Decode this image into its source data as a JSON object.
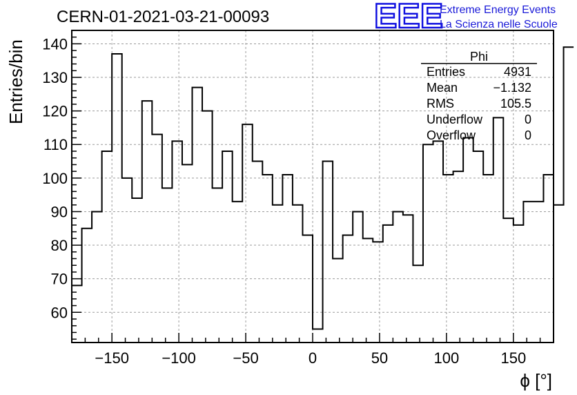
{
  "run_title": "CERN-01-2021-03-21-00093",
  "logo": {
    "mark": "EEE",
    "line1": "Extreme Energy Events",
    "line2": "La Scienza nelle Scuole",
    "color": "#1a1ad8"
  },
  "stats_box": {
    "title": "Phi",
    "rows": [
      {
        "label": "Entries",
        "value": "4931"
      },
      {
        "label": "Mean",
        "value": "−1.132"
      },
      {
        "label": "RMS",
        "value": "105.5"
      },
      {
        "label": "Underflow",
        "value": "0"
      },
      {
        "label": "Overflow",
        "value": "0"
      }
    ]
  },
  "chart_data": {
    "type": "histogram",
    "xlabel": "ϕ [°]",
    "ylabel": "Entries/bin",
    "xlim": [
      -180,
      180
    ],
    "ylim": [
      51,
      144
    ],
    "xticks": [
      -150,
      -100,
      -50,
      0,
      50,
      100,
      150
    ],
    "xtick_labels": [
      "−150",
      "−100",
      "−50",
      "0",
      "50",
      "100",
      "150"
    ],
    "yticks": [
      60,
      70,
      80,
      90,
      100,
      110,
      120,
      130,
      140
    ],
    "ytick_labels": [
      "60",
      "70",
      "80",
      "90",
      "100",
      "110",
      "120",
      "130",
      "140"
    ],
    "grid": true,
    "bin_width": 7.5,
    "bin_start": -180,
    "values": [
      68,
      85,
      90,
      108,
      137,
      100,
      94,
      123,
      113,
      97,
      111,
      104,
      127,
      120,
      97,
      108,
      93,
      116,
      105,
      101,
      92,
      101,
      92,
      83,
      55,
      105,
      76,
      83,
      90,
      82,
      81,
      86,
      90,
      89,
      74,
      110,
      111,
      101,
      102,
      112,
      108,
      101,
      118,
      88,
      86,
      93,
      93,
      101,
      92,
      139
    ]
  }
}
